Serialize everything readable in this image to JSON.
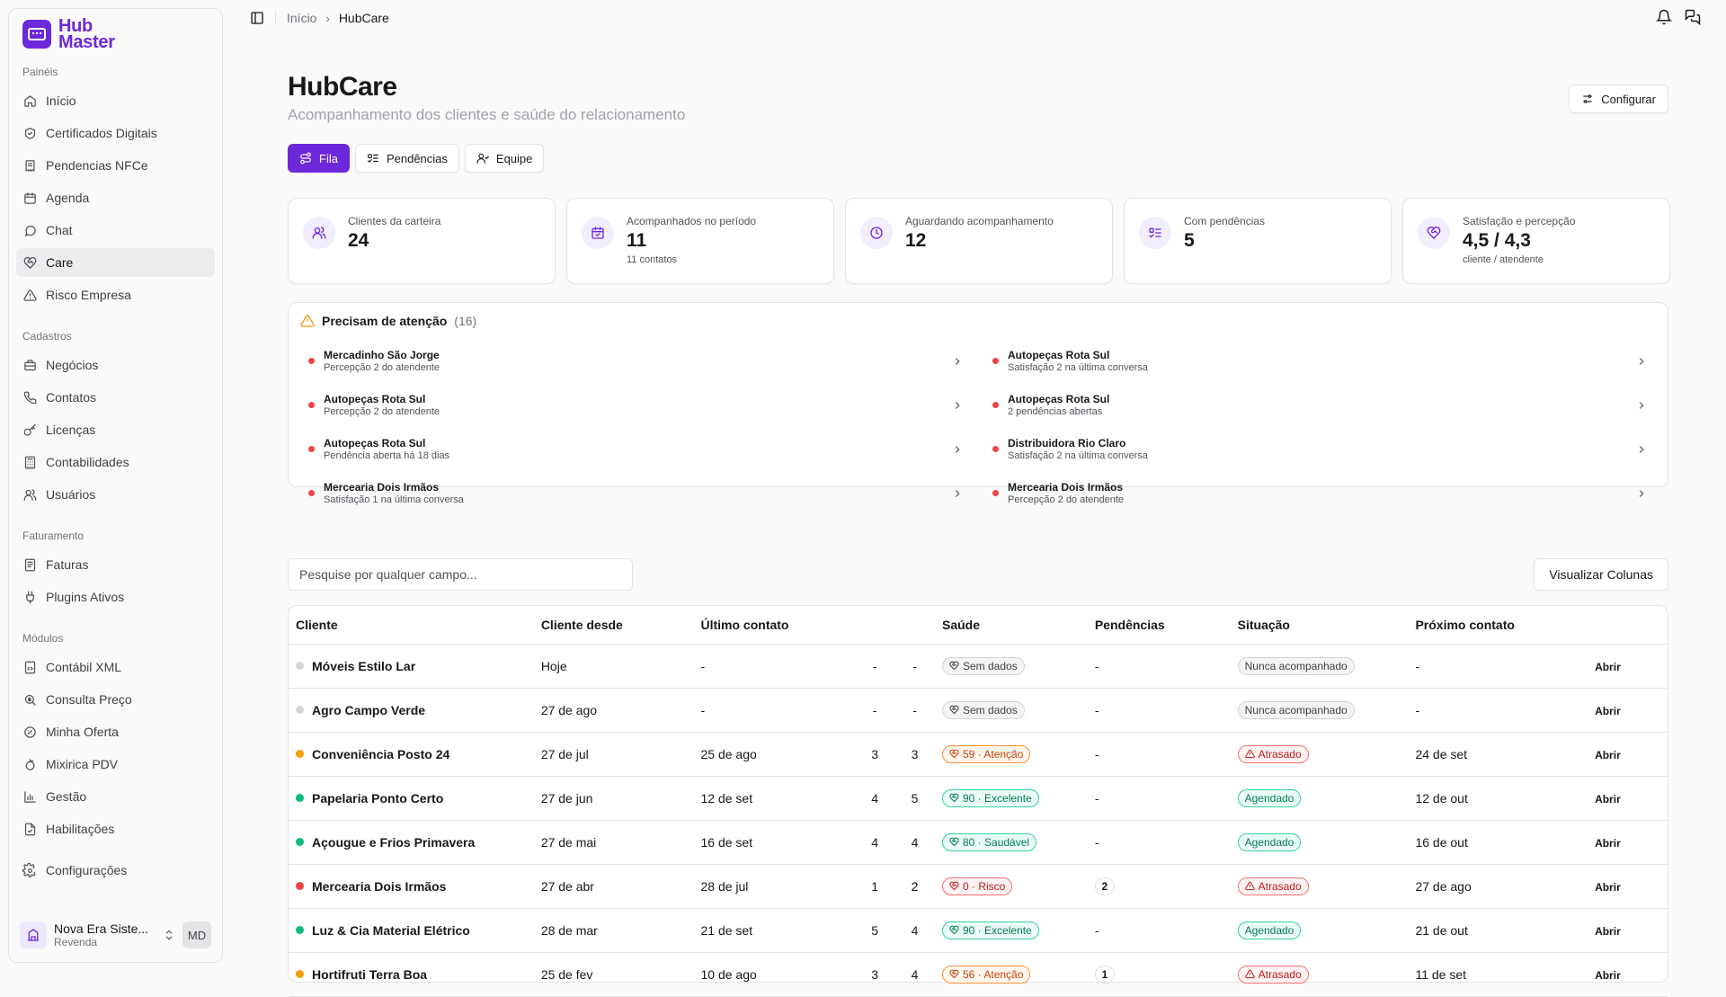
{
  "brand": {
    "line1": "Hub",
    "line2": "Master",
    "color": "#6d28d9"
  },
  "sidebar": {
    "sections": [
      {
        "heading": "Painéis",
        "items": [
          {
            "label": "Início",
            "icon": "home-icon"
          },
          {
            "label": "Certificados Digitais",
            "icon": "shield-icon"
          },
          {
            "label": "Pendencias NFCe",
            "icon": "receipt-icon"
          },
          {
            "label": "Agenda",
            "icon": "calendar-icon"
          },
          {
            "label": "Chat",
            "icon": "chat-icon"
          },
          {
            "label": "Care",
            "icon": "heart-handshake-icon",
            "active": true
          },
          {
            "label": "Risco Empresa",
            "icon": "warning-icon"
          }
        ]
      },
      {
        "heading": "Cadastros",
        "items": [
          {
            "label": "Negócios",
            "icon": "briefcase-icon"
          },
          {
            "label": "Contatos",
            "icon": "phone-icon"
          },
          {
            "label": "Licenças",
            "icon": "key-icon"
          },
          {
            "label": "Contabilidades",
            "icon": "calculator-icon"
          },
          {
            "label": "Usuários",
            "icon": "users-icon"
          }
        ]
      },
      {
        "heading": "Faturamento",
        "items": [
          {
            "label": "Faturas",
            "icon": "invoice-icon"
          },
          {
            "label": "Plugins Ativos",
            "icon": "plug-icon"
          }
        ]
      },
      {
        "heading": "Módulos",
        "items": [
          {
            "label": "Contábil XML",
            "icon": "file-code-icon"
          },
          {
            "label": "Consulta Preço",
            "icon": "search-dollar-icon"
          },
          {
            "label": "Minha Oferta",
            "icon": "badge-percent-icon"
          },
          {
            "label": "Mixirica PDV",
            "icon": "citrus-icon"
          },
          {
            "label": "Gestão",
            "icon": "chart-icon"
          },
          {
            "label": "Habilitações",
            "icon": "document-check-icon"
          }
        ]
      },
      {
        "heading": "",
        "items": [
          {
            "label": "Configurações",
            "icon": "settings-icon"
          }
        ]
      }
    ],
    "user": {
      "name": "Nova Era Siste...",
      "role": "Revenda",
      "initials": "MD"
    }
  },
  "breadcrumb": {
    "home": "Início",
    "current": "HubCare"
  },
  "header": {
    "title": "HubCare",
    "subtitle": "Acompanhamento dos clientes e saúde do relacionamento",
    "config_label": "Configurar"
  },
  "tabs": [
    {
      "label": "Fila",
      "icon": "route-icon",
      "active": true
    },
    {
      "label": "Pendências",
      "icon": "list-todo-icon",
      "active": false
    },
    {
      "label": "Equipe",
      "icon": "team-icon",
      "active": false
    }
  ],
  "stats": [
    {
      "label": "Clientes da carteira",
      "value": "24",
      "note": "",
      "icon": "users-icon"
    },
    {
      "label": "Acompanhados no período",
      "value": "11",
      "note": "11 contatos",
      "icon": "calendar-check-icon"
    },
    {
      "label": "Aguardando acompanhamento",
      "value": "12",
      "note": "",
      "icon": "clock-icon"
    },
    {
      "label": "Com pendências",
      "value": "5",
      "note": "",
      "icon": "list-todo-icon"
    },
    {
      "label": "Satisfação e percepção",
      "value": "4,5 / 4,3",
      "note": "cliente / atendente",
      "icon": "heart-icon"
    }
  ],
  "attention": {
    "title": "Precisam de atenção",
    "count": "(16)",
    "items": [
      {
        "name": "Mercadinho São Jorge",
        "desc": "Percepção 2 do atendente"
      },
      {
        "name": "Autopeças Rota Sul",
        "desc": "Satisfação 2 na última conversa"
      },
      {
        "name": "Autopeças Rota Sul",
        "desc": "Percepção 2 do atendente"
      },
      {
        "name": "Autopeças Rota Sul",
        "desc": "2 pendências abertas"
      },
      {
        "name": "Autopeças Rota Sul",
        "desc": "Pendência aberta há 18 dias"
      },
      {
        "name": "Distribuidora Rio Claro",
        "desc": "Satisfação 2 na última conversa"
      },
      {
        "name": "Mercearia Dois Irmãos",
        "desc": "Satisfação 1 na última conversa"
      },
      {
        "name": "Mercearia Dois Irmãos",
        "desc": "Percepção 2 do atendente"
      }
    ]
  },
  "search": {
    "placeholder": "Pesquise por qualquer campo..."
  },
  "columns_button": "Visualizar Colunas",
  "table": {
    "headers": [
      "Cliente",
      "Cliente desde",
      "Último contato",
      "",
      "",
      "Saúde",
      "Pendências",
      "Situação",
      "Próximo contato",
      ""
    ],
    "open_label": "Abrir",
    "rows": [
      {
        "status": "gray",
        "client": "Móveis Estilo Lar",
        "since": "Hoje",
        "last": "-",
        "s1": "-",
        "s2": "-",
        "health": "Sem dados",
        "health_tone": "gray",
        "pend": "-",
        "situation": "Nunca acompanhado",
        "sit_tone": "gray",
        "next": "-"
      },
      {
        "status": "gray",
        "client": "Agro Campo Verde",
        "since": "27 de ago",
        "last": "-",
        "s1": "-",
        "s2": "-",
        "health": "Sem dados",
        "health_tone": "gray",
        "pend": "-",
        "situation": "Nunca acompanhado",
        "sit_tone": "gray",
        "next": "-"
      },
      {
        "status": "orange",
        "client": "Conveniência Posto 24",
        "since": "27 de jul",
        "last": "25 de ago",
        "s1": "3",
        "s2": "3",
        "health": "59 · Atenção",
        "health_tone": "orange",
        "pend": "-",
        "situation": "Atrasado",
        "sit_tone": "red",
        "next": "24 de set"
      },
      {
        "status": "green",
        "client": "Papelaria Ponto Certo",
        "since": "27 de jun",
        "last": "12 de set",
        "s1": "4",
        "s2": "5",
        "health": "90 · Excelente",
        "health_tone": "green",
        "pend": "-",
        "situation": "Agendado",
        "sit_tone": "green",
        "next": "12 de out"
      },
      {
        "status": "green",
        "client": "Açougue e Frios Primavera",
        "since": "27 de mai",
        "last": "16 de set",
        "s1": "4",
        "s2": "4",
        "health": "80 · Saudável",
        "health_tone": "green",
        "pend": "-",
        "situation": "Agendado",
        "sit_tone": "green",
        "next": "16 de out"
      },
      {
        "status": "red",
        "client": "Mercearia Dois Irmãos",
        "since": "27 de abr",
        "last": "28 de jul",
        "s1": "1",
        "s2": "2",
        "health": "0 · Risco",
        "health_tone": "red",
        "pend": "2",
        "situation": "Atrasado",
        "sit_tone": "red",
        "next": "27 de ago"
      },
      {
        "status": "green",
        "client": "Luz & Cia Material Elétrico",
        "since": "28 de mar",
        "last": "21 de set",
        "s1": "5",
        "s2": "4",
        "health": "90 · Excelente",
        "health_tone": "green",
        "pend": "-",
        "situation": "Agendado",
        "sit_tone": "green",
        "next": "21 de out"
      },
      {
        "status": "orange",
        "client": "Hortifruti Terra Boa",
        "since": "25 de fev",
        "last": "10 de ago",
        "s1": "3",
        "s2": "4",
        "health": "56 · Atenção",
        "health_tone": "orange",
        "pend": "1",
        "situation": "Atrasado",
        "sit_tone": "red",
        "next": "11 de set"
      }
    ]
  },
  "colors": {
    "accent": "#6d28d9",
    "green": "#10b981",
    "orange": "#f59e0b",
    "red": "#ef4444",
    "gray": "#d4d4d8"
  }
}
